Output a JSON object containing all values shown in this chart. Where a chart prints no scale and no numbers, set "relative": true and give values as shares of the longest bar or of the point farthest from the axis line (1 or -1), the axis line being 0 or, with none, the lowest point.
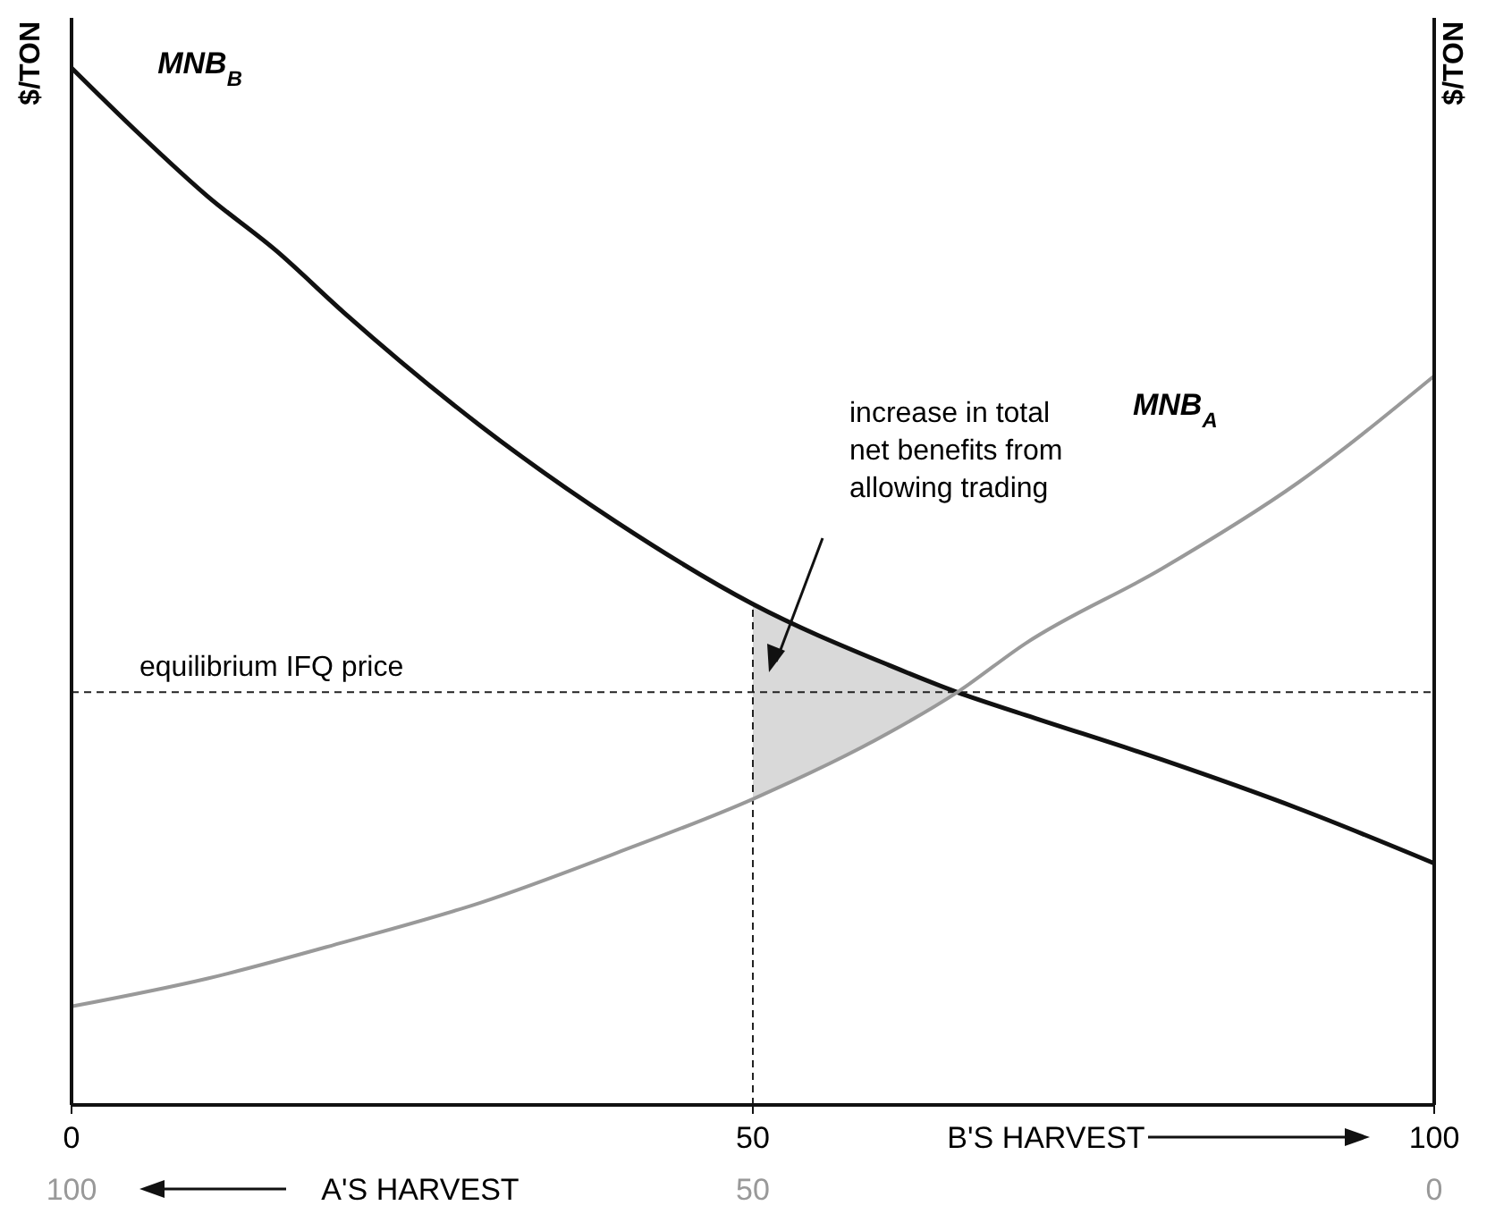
{
  "chart_data": {
    "type": "line",
    "relative": true,
    "xlim": [
      0,
      100
    ],
    "xticks": [
      0,
      50,
      100
    ],
    "xlabel": "B'S HARVEST",
    "x2lim": [
      100,
      0
    ],
    "x2ticks": [
      100,
      50,
      0
    ],
    "x2label": "A'S HARVEST",
    "ylabel": "$/TON",
    "y2label": "$/TON",
    "series": [
      {
        "name": "MNB$_{B}$",
        "color": "#111111",
        "x": [
          0,
          5,
          10,
          15,
          20,
          30,
          40,
          50,
          60,
          65,
          70,
          80,
          90,
          100
        ],
        "values": [
          1.0,
          0.936,
          0.876,
          0.824,
          0.764,
          0.655,
          0.562,
          0.483,
          0.424,
          0.398,
          0.376,
          0.333,
          0.286,
          0.233
        ]
      },
      {
        "name": "MNB$_{A}$",
        "color": "#999999",
        "x": [
          0,
          10,
          20,
          30,
          40,
          50,
          60,
          65,
          70,
          80,
          90,
          100
        ],
        "values": [
          0.095,
          0.122,
          0.157,
          0.195,
          0.243,
          0.295,
          0.359,
          0.398,
          0.445,
          0.517,
          0.6,
          0.703
        ]
      }
    ],
    "ref_lines": [
      {
        "axis": "y",
        "value": 0.398,
        "label": "equilibrium IFQ price",
        "line_style": "dashed"
      },
      {
        "axis": "x",
        "value": 50,
        "line_style": "dashed"
      }
    ],
    "annotations": [
      "increase in total net benefits from allowing trading"
    ]
  }
}
